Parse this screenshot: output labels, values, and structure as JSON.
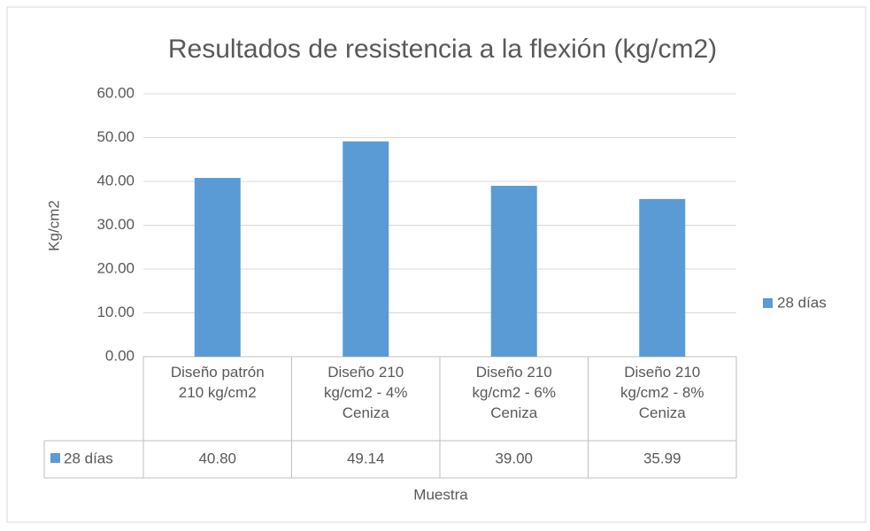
{
  "chart_data": {
    "type": "bar",
    "title": "Resultados de resistencia a la flexión (kg/cm2)",
    "x_label": "Muestra",
    "y_label": "Kg/cm2",
    "categories": [
      "Diseño patrón 210 kg/cm2",
      "Diseño 210 kg/cm2 - 4% Ceniza",
      "Diseño 210 kg/cm2 - 6% Ceniza",
      "Diseño 210 kg/cm2 - 8% Ceniza"
    ],
    "series": [
      {
        "name": "28  días",
        "color": "#5b9bd5",
        "values": [
          40.8,
          49.14,
          39.0,
          35.99
        ],
        "value_labels": [
          "40.80",
          "49.14",
          "39.00",
          "35.99"
        ]
      }
    ],
    "ylim": [
      0,
      60
    ],
    "yticks": [
      {
        "value": 0,
        "label": "0.00"
      },
      {
        "value": 10,
        "label": "10.00"
      },
      {
        "value": 20,
        "label": "20.00"
      },
      {
        "value": 30,
        "label": "30.00"
      },
      {
        "value": 40,
        "label": "40.00"
      },
      {
        "value": 50,
        "label": "50.00"
      },
      {
        "value": 60,
        "label": "60.00"
      }
    ],
    "grid": true,
    "legend": "right"
  }
}
